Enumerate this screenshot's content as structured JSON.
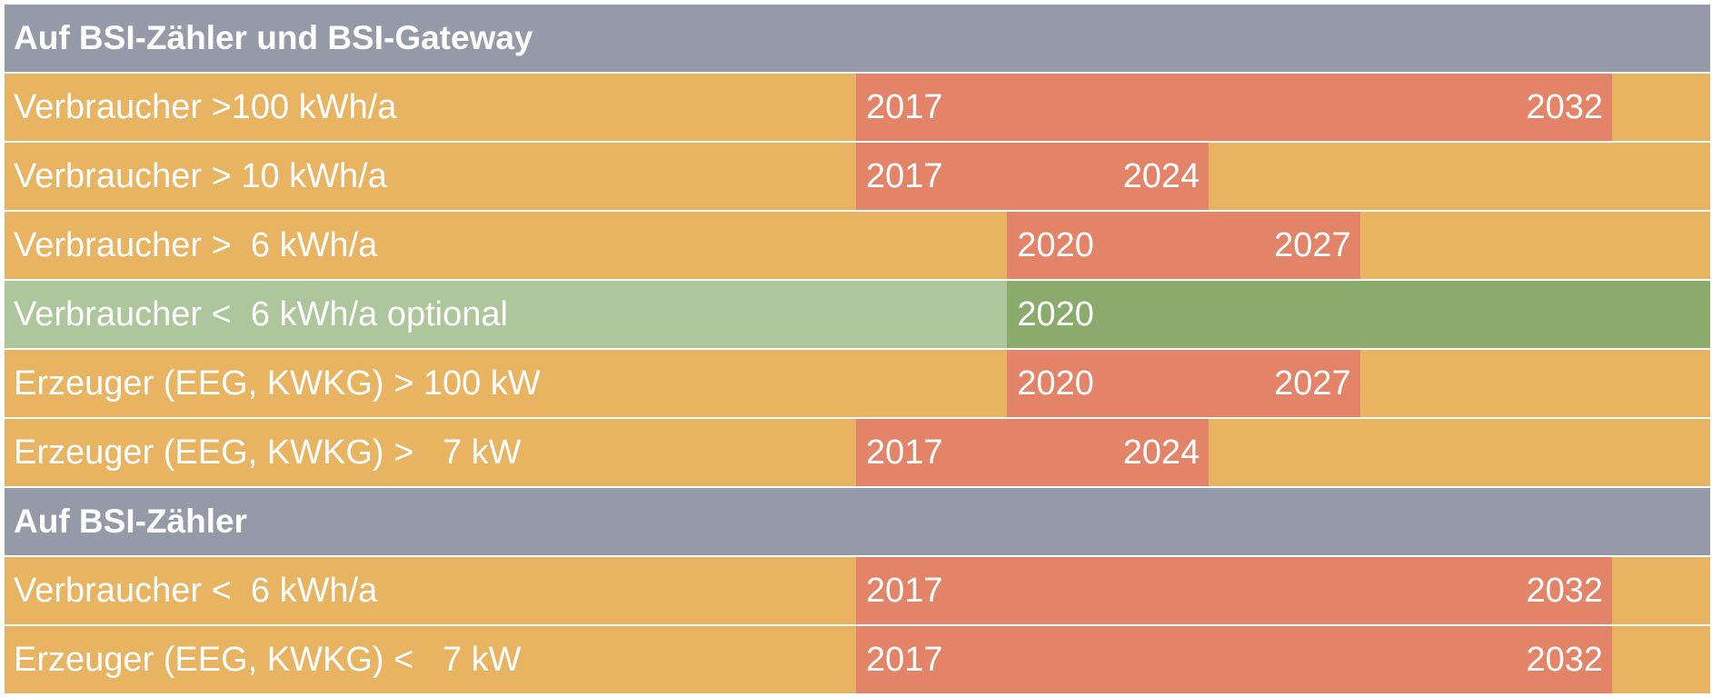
{
  "timeline": {
    "axis_start_year": 2011,
    "axis_end_year": 2037,
    "colors": {
      "header": "#949aa8",
      "row_background": "#e8b462",
      "mandatory_bar": "#e38469",
      "optional_background": "#adc69c",
      "optional_bar": "#8bab6c"
    },
    "rows": [
      {
        "kind": "header",
        "label": "Auf BSI-Zähler und BSI-Gateway"
      },
      {
        "kind": "mandatory",
        "label": "Verbraucher >100 kWh/a",
        "start": "2017",
        "end": "2032"
      },
      {
        "kind": "mandatory",
        "label": "Verbraucher > 10 kWh/a",
        "start": "2017",
        "end": "2024"
      },
      {
        "kind": "mandatory",
        "label": "Verbraucher >  6 kWh/a",
        "start": "2020",
        "end": "2027"
      },
      {
        "kind": "optional",
        "label": "Verbraucher <  6 kWh/a optional",
        "start": "2020"
      },
      {
        "kind": "mandatory",
        "label": "Erzeuger (EEG, KWKG) > 100 kW",
        "start": "2020",
        "end": "2027"
      },
      {
        "kind": "mandatory",
        "label": "Erzeuger (EEG, KWKG) >   7 kW",
        "start": "2017",
        "end": "2024"
      },
      {
        "kind": "header",
        "label": "Auf BSI-Zähler"
      },
      {
        "kind": "mandatory",
        "label": "Verbraucher <  6 kWh/a",
        "start": "2017",
        "end": "2032"
      },
      {
        "kind": "mandatory",
        "label": "Erzeuger (EEG, KWKG) <   7 kW",
        "start": "2017",
        "end": "2032"
      }
    ]
  }
}
